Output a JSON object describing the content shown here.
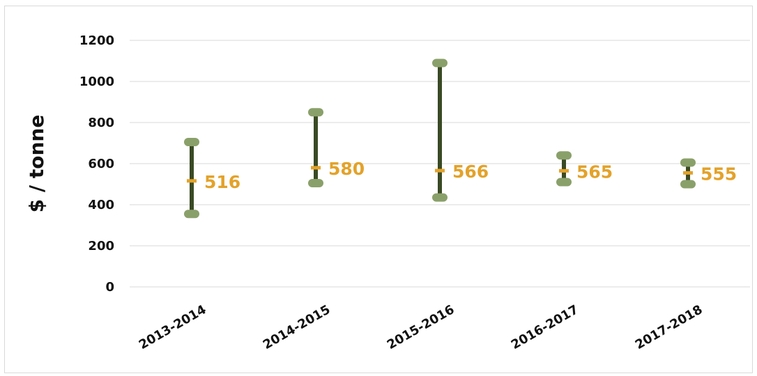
{
  "chart_data": {
    "type": "range",
    "ylabel": "$ / tonne",
    "ylim": [
      0,
      1200
    ],
    "yticks": [
      "0",
      "200",
      "400",
      "600",
      "800",
      "1000",
      "1200"
    ],
    "categories": [
      "2013-2014",
      "2014-2015",
      "2015-2016",
      "2016-2017",
      "2017-2018"
    ],
    "low": [
      355,
      505,
      435,
      510,
      500
    ],
    "high": [
      705,
      850,
      1090,
      640,
      605
    ],
    "mid": [
      516,
      580,
      566,
      565,
      555
    ],
    "mid_labels": [
      "516",
      "580",
      "566",
      "565",
      "555"
    ],
    "grid": true,
    "colors": {
      "range_line": "#3a4a24",
      "cap": "#8aa06a",
      "mid": "#e3a22a",
      "grid": "#e6e6e6"
    }
  }
}
